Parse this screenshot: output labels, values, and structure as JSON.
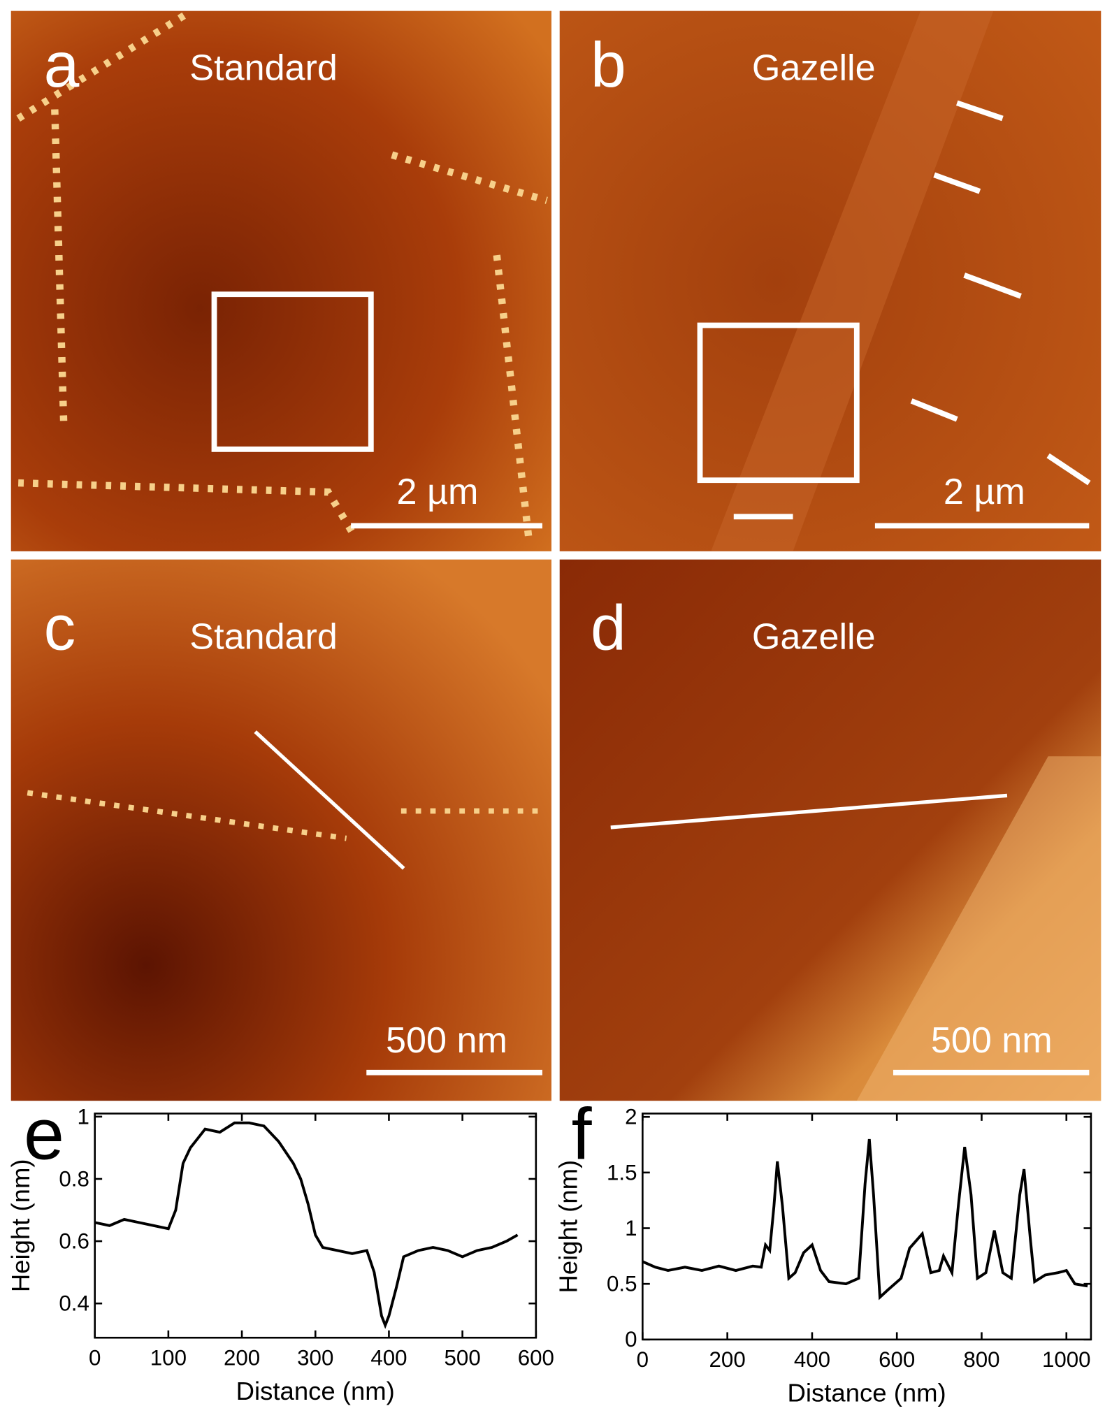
{
  "panels": [
    {
      "letter": "a",
      "label": "Standard",
      "scale_bar": "2 µm"
    },
    {
      "letter": "b",
      "label": "Gazelle",
      "scale_bar": "2 µm"
    },
    {
      "letter": "c",
      "label": "Standard",
      "scale_bar": "500 nm"
    },
    {
      "letter": "d",
      "label": "Gazelle",
      "scale_bar": "500 nm"
    }
  ],
  "chart_data": [
    {
      "type": "line",
      "panel_letter": "e",
      "x_label": "Distance (nm)",
      "y_label": "Height (nm)",
      "color": "#000000",
      "x": [
        0,
        20,
        40,
        60,
        80,
        100,
        110,
        120,
        130,
        140,
        150,
        170,
        190,
        210,
        230,
        250,
        270,
        280,
        290,
        300,
        310,
        330,
        350,
        370,
        380,
        390,
        395,
        400,
        410,
        420,
        440,
        460,
        480,
        500,
        520,
        540,
        560,
        575
      ],
      "values": [
        0.66,
        0.65,
        0.67,
        0.66,
        0.65,
        0.64,
        0.7,
        0.85,
        0.9,
        0.93,
        0.96,
        0.95,
        0.98,
        0.98,
        0.97,
        0.92,
        0.85,
        0.8,
        0.72,
        0.62,
        0.58,
        0.57,
        0.56,
        0.57,
        0.5,
        0.36,
        0.33,
        0.36,
        0.45,
        0.55,
        0.57,
        0.58,
        0.57,
        0.55,
        0.57,
        0.58,
        0.6,
        0.62
      ],
      "xlim": [
        0,
        600
      ],
      "ylim": [
        0.29,
        1.01
      ],
      "xticks": [
        0,
        100,
        200,
        300,
        400,
        500,
        600
      ],
      "yticks": [
        0.4,
        0.6,
        0.8,
        1
      ]
    },
    {
      "type": "line",
      "panel_letter": "f",
      "x_label": "Distance (nm)",
      "y_label": "Height (nm)",
      "color": "#000000",
      "x": [
        0,
        30,
        60,
        100,
        140,
        180,
        220,
        260,
        280,
        290,
        300,
        310,
        318,
        330,
        345,
        360,
        380,
        400,
        420,
        440,
        480,
        510,
        525,
        535,
        545,
        560,
        580,
        610,
        630,
        660,
        680,
        700,
        710,
        730,
        745,
        760,
        775,
        790,
        810,
        830,
        850,
        870,
        890,
        900,
        915,
        925,
        950,
        980,
        1000,
        1020,
        1050
      ],
      "values": [
        0.7,
        0.65,
        0.62,
        0.65,
        0.62,
        0.66,
        0.62,
        0.66,
        0.65,
        0.85,
        0.8,
        1.2,
        1.6,
        1.2,
        0.55,
        0.6,
        0.78,
        0.85,
        0.62,
        0.52,
        0.5,
        0.55,
        1.4,
        1.8,
        1.3,
        0.38,
        0.45,
        0.55,
        0.82,
        0.95,
        0.6,
        0.62,
        0.75,
        0.6,
        1.2,
        1.73,
        1.3,
        0.55,
        0.6,
        0.98,
        0.6,
        0.55,
        1.3,
        1.53,
        0.9,
        0.52,
        0.58,
        0.6,
        0.62,
        0.5,
        0.48
      ],
      "xlim": [
        0,
        1058
      ],
      "ylim": [
        0,
        2.03
      ],
      "xticks": [
        0,
        200,
        400,
        600,
        800,
        1000
      ],
      "yticks": [
        0,
        0.5,
        1,
        1.5,
        2
      ]
    }
  ]
}
